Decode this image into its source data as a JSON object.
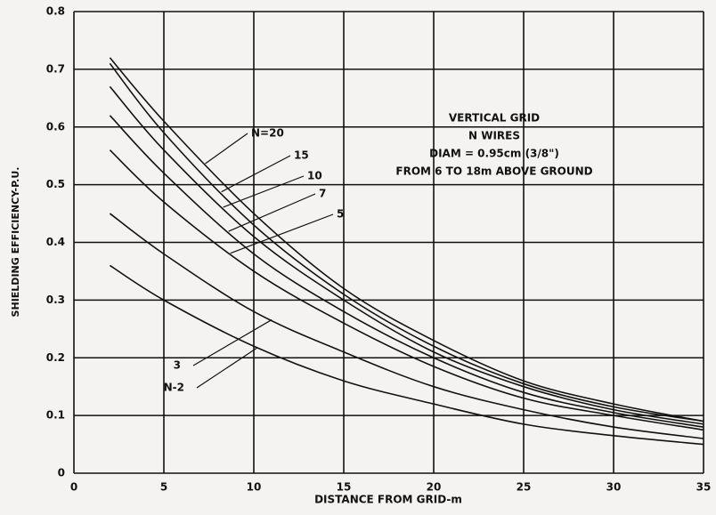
{
  "chart_data": {
    "type": "line",
    "annotation": [
      "VERTICAL GRID",
      "N WIRES",
      "DIAM = 0.95cm (3/8\")",
      "FROM 6 TO 18m ABOVE GROUND"
    ],
    "x_label": "DISTANCE FROM GRID-m",
    "y_label": "SHIELDING EFFICIENCY-P.U.",
    "x": [
      2,
      5,
      10,
      15,
      20,
      25,
      30,
      35
    ],
    "series": [
      {
        "name": "N=20",
        "color": "#111111",
        "values": [
          0.72,
          0.61,
          0.45,
          0.32,
          0.23,
          0.16,
          0.12,
          0.09
        ]
      },
      {
        "name": "15",
        "color": "#111111",
        "values": [
          0.71,
          0.59,
          0.43,
          0.31,
          0.22,
          0.155,
          0.115,
          0.09
        ]
      },
      {
        "name": "10",
        "color": "#111111",
        "values": [
          0.67,
          0.56,
          0.41,
          0.3,
          0.21,
          0.15,
          0.11,
          0.085
        ]
      },
      {
        "name": "7",
        "color": "#111111",
        "values": [
          0.62,
          0.52,
          0.38,
          0.28,
          0.2,
          0.14,
          0.105,
          0.08
        ]
      },
      {
        "name": "5",
        "color": "#111111",
        "values": [
          0.56,
          0.47,
          0.35,
          0.26,
          0.185,
          0.13,
          0.1,
          0.075
        ]
      },
      {
        "name": "3",
        "color": "#111111",
        "values": [
          0.45,
          0.38,
          0.28,
          0.21,
          0.15,
          0.11,
          0.08,
          0.06
        ]
      },
      {
        "name": "N-2",
        "color": "#111111",
        "values": [
          0.36,
          0.3,
          0.22,
          0.16,
          0.12,
          0.085,
          0.065,
          0.05
        ]
      }
    ],
    "xlim": [
      0,
      35
    ],
    "xticks": [
      0,
      5,
      10,
      15,
      20,
      25,
      30,
      35
    ],
    "ylim": [
      0,
      0.8
    ],
    "yticks": [
      0,
      0.1,
      0.2,
      0.3,
      0.4,
      0.5,
      0.6,
      0.7,
      0.8
    ],
    "grid": true
  }
}
